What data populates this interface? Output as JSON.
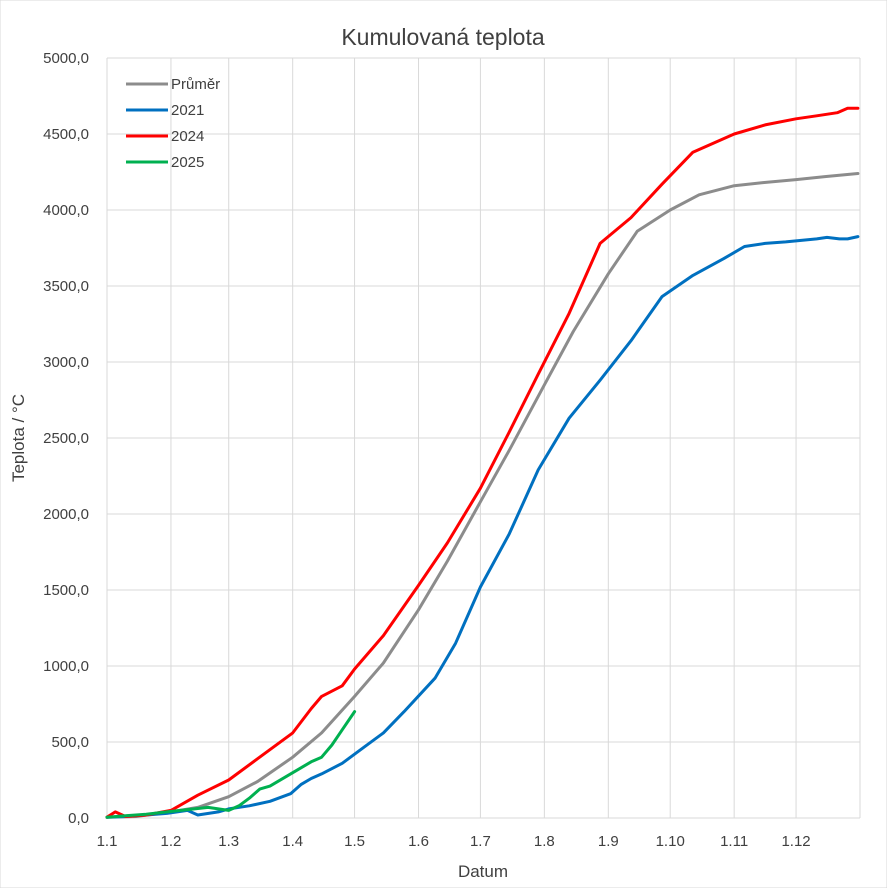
{
  "chart_data": {
    "type": "line",
    "title": "Kumulovaná teplota",
    "xlabel": "Datum",
    "ylabel": "Teplota / °C",
    "ylim": [
      0,
      5000
    ],
    "y_ticks": [
      "0,0",
      "500,0",
      "1000,0",
      "1500,0",
      "2000,0",
      "2500,0",
      "3000,0",
      "3500,0",
      "4000,0",
      "4500,0",
      "5000,0"
    ],
    "x_ticks": [
      "1.1",
      "1.2",
      "1.3",
      "1.4",
      "1.5",
      "1.6",
      "1.7",
      "1.8",
      "1.9",
      "1.10",
      "1.11",
      "1.12"
    ],
    "x_unit": "day of year",
    "xlim": [
      1,
      366
    ],
    "grid": "vertical and horizontal",
    "legend_position": "top-left",
    "series": [
      {
        "name": "Průměr",
        "color": "#8c8c8c",
        "x": [
          1,
          15,
          32,
          45,
          60,
          74,
          91,
          105,
          121,
          135,
          152,
          166,
          182,
          196,
          213,
          227,
          244,
          258,
          274,
          288,
          305,
          319,
          335,
          349,
          365
        ],
        "values": [
          5,
          10,
          40,
          70,
          140,
          240,
          400,
          560,
          800,
          1020,
          1370,
          1690,
          2080,
          2420,
          2850,
          3200,
          3580,
          3860,
          4000,
          4100,
          4160,
          4180,
          4200,
          4220,
          4240
        ]
      },
      {
        "name": "2021",
        "color": "#0070c0",
        "x": [
          1,
          10,
          20,
          30,
          40,
          45,
          55,
          60,
          70,
          80,
          90,
          95,
          100,
          105,
          115,
          125,
          135,
          145,
          160,
          170,
          182,
          196,
          210,
          225,
          240,
          255,
          270,
          285,
          300,
          310,
          320,
          330,
          345,
          350,
          356,
          360,
          365
        ],
        "values": [
          5,
          10,
          20,
          30,
          50,
          20,
          40,
          60,
          80,
          110,
          160,
          220,
          260,
          290,
          360,
          460,
          560,
          700,
          920,
          1150,
          1520,
          1870,
          2290,
          2630,
          2880,
          3140,
          3430,
          3570,
          3680,
          3760,
          3780,
          3790,
          3810,
          3820,
          3810,
          3810,
          3825
        ]
      },
      {
        "name": "2024",
        "color": "#ff0000",
        "x": [
          1,
          5,
          10,
          20,
          32,
          45,
          60,
          74,
          91,
          100,
          105,
          115,
          121,
          135,
          152,
          166,
          182,
          196,
          210,
          225,
          240,
          255,
          270,
          285,
          305,
          320,
          335,
          345,
          355,
          360,
          365
        ],
        "values": [
          5,
          40,
          10,
          20,
          50,
          150,
          250,
          390,
          560,
          720,
          800,
          870,
          980,
          1200,
          1530,
          1810,
          2170,
          2540,
          2920,
          3320,
          3780,
          3950,
          4170,
          4380,
          4500,
          4560,
          4600,
          4620,
          4640,
          4670,
          4670
        ]
      },
      {
        "name": "2025",
        "color": "#00b050",
        "x": [
          1,
          10,
          20,
          30,
          40,
          50,
          60,
          65,
          70,
          75,
          80,
          90,
          100,
          105,
          110,
          115,
          121
        ],
        "values": [
          5,
          15,
          25,
          40,
          55,
          70,
          50,
          80,
          130,
          190,
          210,
          290,
          370,
          400,
          480,
          580,
          700
        ]
      }
    ]
  }
}
